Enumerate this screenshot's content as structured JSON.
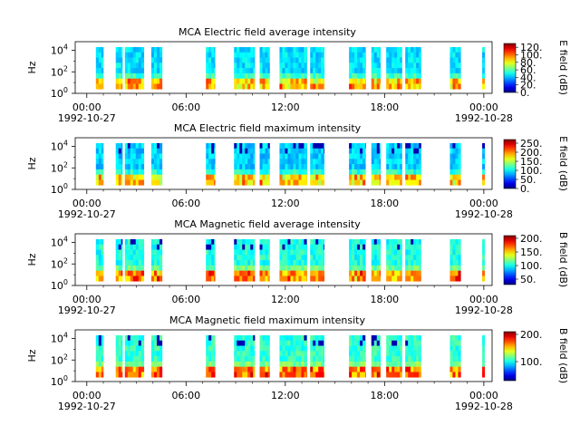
{
  "chart_data": [
    {
      "type": "heatmap",
      "title": "MCA  Electric field average intensity",
      "ylabel": "Hz",
      "colorbar_label": "E field (dB)",
      "y_scale": "log",
      "y_tick_labels": [
        {
          "base": "10",
          "exp": "0"
        },
        {
          "base": "10",
          "exp": "2"
        },
        {
          "base": "10",
          "exp": "4"
        }
      ],
      "x_tick_labels": [
        {
          "time": "00:00",
          "date": "1992-10-27"
        },
        {
          "time": "06:00",
          "date": ""
        },
        {
          "time": "12:00",
          "date": ""
        },
        {
          "time": "18:00",
          "date": ""
        },
        {
          "time": "00:00",
          "date": "1992-10-28"
        }
      ],
      "colorbar_ticks": [
        "120.",
        "100.",
        "80.",
        "60.",
        "40.",
        "20.",
        "0."
      ],
      "colorbar_range": [
        0,
        130
      ],
      "dominant_level": 0.35,
      "has_dropouts": false
    },
    {
      "type": "heatmap",
      "title": "MCA  Electric field maximum intensity",
      "ylabel": "Hz",
      "colorbar_label": "E field (dB)",
      "y_scale": "log",
      "y_tick_labels": [
        {
          "base": "10",
          "exp": "0"
        },
        {
          "base": "10",
          "exp": "2"
        },
        {
          "base": "10",
          "exp": "4"
        }
      ],
      "x_tick_labels": [
        {
          "time": "00:00",
          "date": "1992-10-27"
        },
        {
          "time": "06:00",
          "date": ""
        },
        {
          "time": "12:00",
          "date": ""
        },
        {
          "time": "18:00",
          "date": ""
        },
        {
          "time": "00:00",
          "date": "1992-10-28"
        }
      ],
      "colorbar_ticks": [
        "250.",
        "200.",
        "150.",
        "100.",
        "50.",
        "0."
      ],
      "colorbar_range": [
        0,
        270
      ],
      "dominant_level": 0.33,
      "has_dropouts": true
    },
    {
      "type": "heatmap",
      "title": "MCA  Magnetic field average intensity",
      "ylabel": "Hz",
      "colorbar_label": "B field (dB)",
      "y_scale": "log",
      "y_tick_labels": [
        {
          "base": "10",
          "exp": "0"
        },
        {
          "base": "10",
          "exp": "2"
        },
        {
          "base": "10",
          "exp": "4"
        }
      ],
      "x_tick_labels": [
        {
          "time": "00:00",
          "date": "1992-10-27"
        },
        {
          "time": "06:00",
          "date": ""
        },
        {
          "time": "12:00",
          "date": ""
        },
        {
          "time": "18:00",
          "date": ""
        },
        {
          "time": "00:00",
          "date": "1992-10-28"
        }
      ],
      "colorbar_ticks": [
        "200.",
        "150.",
        "100.",
        "50."
      ],
      "colorbar_range": [
        30,
        210
      ],
      "dominant_level": 0.4,
      "has_dropouts": true
    },
    {
      "type": "heatmap",
      "title": "MCA  Magnetic field maximum intensity",
      "ylabel": "Hz",
      "colorbar_label": "B field (dB)",
      "y_scale": "log",
      "y_tick_labels": [
        {
          "base": "10",
          "exp": "0"
        },
        {
          "base": "10",
          "exp": "2"
        },
        {
          "base": "10",
          "exp": "4"
        }
      ],
      "x_tick_labels": [
        {
          "time": "00:00",
          "date": "1992-10-27"
        },
        {
          "time": "06:00",
          "date": ""
        },
        {
          "time": "12:00",
          "date": ""
        },
        {
          "time": "18:00",
          "date": ""
        },
        {
          "time": "00:00",
          "date": "1992-10-28"
        }
      ],
      "colorbar_ticks": [
        "200.",
        "100."
      ],
      "colorbar_range": [
        30,
        210
      ],
      "dominant_level": 0.42,
      "has_dropouts": true
    }
  ],
  "data_segments_hours": [
    [
      0.55,
      1.0
    ],
    [
      1.75,
      2.15
    ],
    [
      2.3,
      3.45
    ],
    [
      3.9,
      4.55
    ],
    [
      7.2,
      7.75
    ],
    [
      8.9,
      10.15
    ],
    [
      10.45,
      11.05
    ],
    [
      11.65,
      13.3
    ],
    [
      13.5,
      14.35
    ],
    [
      15.85,
      16.85
    ],
    [
      17.2,
      17.75
    ],
    [
      18.1,
      19.05
    ],
    [
      19.25,
      20.2
    ],
    [
      21.95,
      22.6
    ],
    [
      23.9,
      24.05
    ]
  ],
  "x_range_hours": [
    -0.7,
    24.5
  ],
  "y_range_log10_hz": [
    0,
    4.8
  ]
}
